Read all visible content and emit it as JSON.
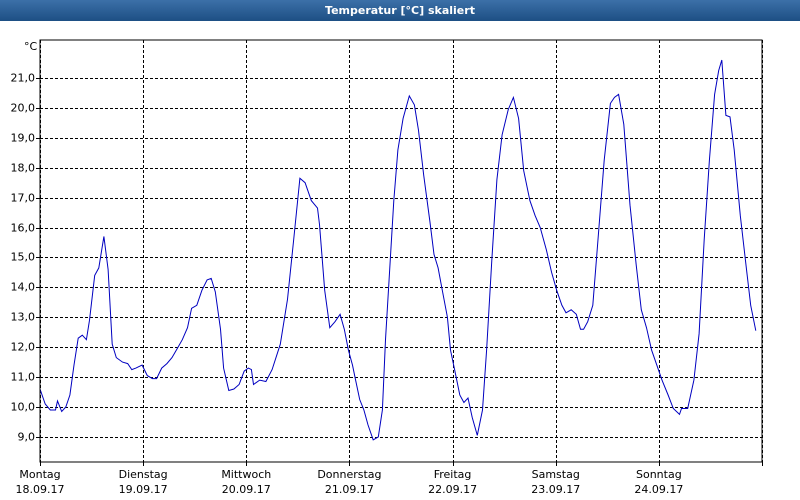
{
  "chart_data": {
    "type": "line",
    "title": "Temperatur [°C] skaliert",
    "ylabel": "°C",
    "categories": [
      "Montag",
      "Dienstag",
      "Mittwoch",
      "Donnerstag",
      "Freitag",
      "Samstag",
      "Sonntag"
    ],
    "dates": [
      "18.09.17",
      "19.09.17",
      "20.09.17",
      "21.09.17",
      "22.09.17",
      "23.09.17",
      "24.09.17"
    ],
    "xlim": [
      0,
      7
    ],
    "xticks": [
      0,
      1,
      2,
      3,
      4,
      5,
      6,
      7
    ],
    "ylim": [
      8.16,
      22.27
    ],
    "yticks": [
      {
        "value": 9,
        "label": "9,0"
      },
      {
        "value": 10,
        "label": "10,0"
      },
      {
        "value": 11,
        "label": "11,0"
      },
      {
        "value": 12,
        "label": "12,0"
      },
      {
        "value": 13,
        "label": "13,0"
      },
      {
        "value": 14,
        "label": "14,0"
      },
      {
        "value": 15,
        "label": "15,0"
      },
      {
        "value": 16,
        "label": "16,0"
      },
      {
        "value": 17,
        "label": "17,0"
      },
      {
        "value": 18,
        "label": "18,0"
      },
      {
        "value": 19,
        "label": "19,0"
      },
      {
        "value": 20,
        "label": "20,0"
      },
      {
        "value": 21,
        "label": "21,0"
      }
    ],
    "grid": true,
    "series": [
      {
        "color": "#0000c0",
        "x": [
          0,
          0.05,
          0.1,
          0.15,
          0.17,
          0.21,
          0.25,
          0.29,
          0.33,
          0.37,
          0.41,
          0.45,
          0.48,
          0.53,
          0.57,
          0.62,
          0.66,
          0.7,
          0.74,
          0.8,
          0.85,
          0.89,
          0.93,
          0.99,
          1.04,
          1.09,
          1.13,
          1.18,
          1.23,
          1.28,
          1.33,
          1.38,
          1.43,
          1.47,
          1.52,
          1.57,
          1.62,
          1.66,
          1.7,
          1.75,
          1.78,
          1.83,
          1.88,
          1.93,
          1.98,
          2.02,
          2.05,
          2.07,
          2.13,
          2.19,
          2.25,
          2.33,
          2.4,
          2.46,
          2.52,
          2.57,
          2.63,
          2.69,
          2.71,
          2.76,
          2.81,
          2.86,
          2.91,
          2.95,
          2.99,
          3.03,
          3.06,
          3.1,
          3.14,
          3.18,
          3.23,
          3.28,
          3.32,
          3.35,
          3.39,
          3.43,
          3.47,
          3.52,
          3.58,
          3.63,
          3.67,
          3.72,
          3.78,
          3.82,
          3.86,
          3.9,
          3.95,
          3.98,
          4.02,
          4.07,
          4.11,
          4.15,
          4.19,
          4.24,
          4.29,
          4.33,
          4.38,
          4.43,
          4.48,
          4.54,
          4.59,
          4.64,
          4.69,
          4.75,
          4.8,
          4.85,
          4.91,
          4.96,
          5.01,
          5.06,
          5.1,
          5.15,
          5.2,
          5.24,
          5.27,
          5.31,
          5.36,
          5.41,
          5.47,
          5.53,
          5.57,
          5.61,
          5.66,
          5.72,
          5.78,
          5.83,
          5.88,
          5.93,
          5.98,
          6.03,
          6.09,
          6.14,
          6.2,
          6.22,
          6.28,
          6.34,
          6.39,
          6.44,
          6.49,
          6.54,
          6.58,
          6.61,
          6.65,
          6.69,
          6.73,
          6.79,
          6.85,
          6.89,
          6.94
        ],
        "values": [
          10.6,
          10.1,
          9.9,
          9.9,
          10.2,
          9.85,
          10.0,
          10.4,
          11.4,
          12.3,
          12.4,
          12.25,
          12.9,
          14.4,
          14.65,
          15.7,
          14.6,
          12.1,
          11.65,
          11.5,
          11.45,
          11.25,
          11.3,
          11.4,
          11.05,
          10.95,
          10.95,
          11.3,
          11.45,
          11.65,
          11.95,
          12.25,
          12.65,
          13.3,
          13.4,
          13.9,
          14.25,
          14.3,
          13.85,
          12.6,
          11.3,
          10.55,
          10.6,
          10.75,
          11.2,
          11.3,
          11.25,
          10.75,
          10.9,
          10.85,
          11.25,
          12.1,
          13.6,
          15.6,
          17.65,
          17.5,
          16.9,
          16.65,
          16.1,
          13.9,
          12.65,
          12.85,
          13.1,
          12.6,
          11.9,
          11.4,
          10.9,
          10.25,
          9.9,
          9.4,
          8.9,
          9.0,
          9.9,
          12.25,
          14.6,
          16.9,
          18.6,
          19.65,
          20.4,
          20.1,
          19.25,
          17.75,
          16.2,
          15.1,
          14.65,
          13.9,
          13.0,
          11.9,
          11.25,
          10.4,
          10.15,
          10.3,
          9.65,
          9.05,
          9.9,
          11.9,
          14.9,
          17.6,
          19.1,
          19.95,
          20.35,
          19.65,
          17.9,
          16.9,
          16.4,
          16.0,
          15.25,
          14.5,
          13.9,
          13.4,
          13.15,
          13.25,
          13.1,
          12.6,
          12.6,
          12.85,
          13.4,
          15.6,
          18.25,
          20.15,
          20.35,
          20.45,
          19.45,
          16.75,
          14.75,
          13.25,
          12.65,
          11.9,
          11.4,
          10.9,
          10.4,
          9.95,
          9.75,
          9.95,
          9.95,
          10.9,
          12.45,
          15.6,
          18.25,
          20.45,
          21.25,
          21.6,
          19.75,
          19.7,
          18.6,
          16.4,
          14.6,
          13.4,
          12.55
        ]
      }
    ]
  }
}
